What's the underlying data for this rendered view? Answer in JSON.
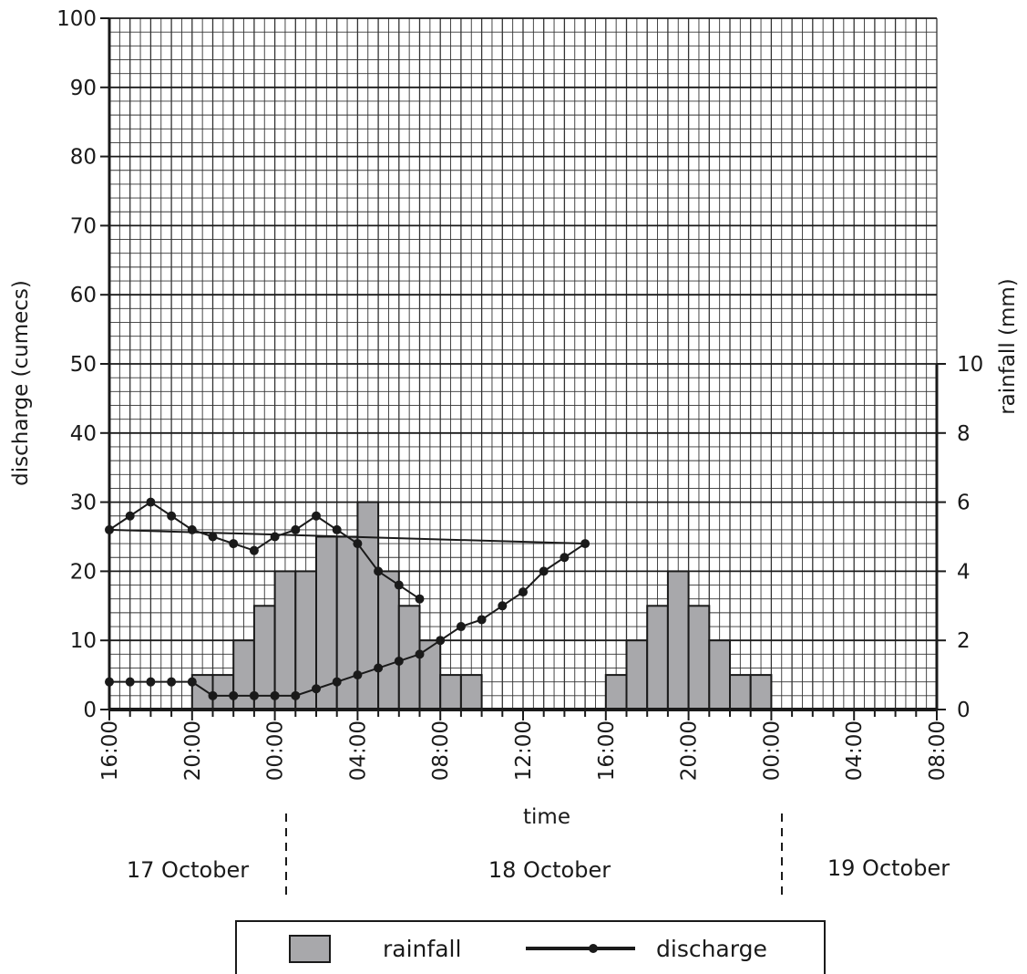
{
  "chart_data": {
    "type": "bar+line",
    "xlabel": "time",
    "ylabel_left": "discharge (cumecs)",
    "ylabel_right": "rainfall (mm)",
    "ylim_left": [
      0,
      100
    ],
    "ylim_right": [
      0,
      10
    ],
    "yticks_left": [
      "0",
      "10",
      "20",
      "30",
      "40",
      "50",
      "60",
      "70",
      "80",
      "90",
      "100"
    ],
    "yticks_right": [
      "0",
      "2",
      "4",
      "6",
      "8",
      "10"
    ],
    "xticks": [
      "16:00",
      "20:00",
      "00:00",
      "04:00",
      "08:00",
      "12:00",
      "16:00",
      "20:00",
      "00:00",
      "04:00",
      "08:00"
    ],
    "dates": [
      "17 October",
      "18 October",
      "19 October"
    ],
    "grid": true,
    "legend": {
      "position": "bottom-center",
      "rainfall_label": "rainfall",
      "discharge_label": "discharge"
    },
    "rainfall": {
      "name": "rainfall",
      "hours_since_16_00_17_Oct": [
        4,
        5,
        6,
        7,
        8,
        9,
        10,
        11,
        12,
        13,
        14,
        15,
        16,
        17,
        24,
        25,
        26,
        27,
        28,
        29,
        30,
        31
      ],
      "values_mm": [
        1,
        1,
        2,
        3,
        4,
        4,
        5,
        5,
        6,
        4,
        3,
        2,
        1,
        1,
        1,
        2,
        3,
        4,
        3,
        2,
        1,
        1
      ]
    },
    "discharge": {
      "name": "discharge",
      "time": [
        "16:00",
        "17:00",
        "18:00",
        "19:00",
        "20:00",
        "21:00",
        "22:00",
        "23:00",
        "00:00",
        "01:00",
        "02:00",
        "03:00",
        "04:00",
        "05:00",
        "06:00",
        "07:00",
        "08:00",
        "09:00",
        "10:00",
        "11:00",
        "12:00",
        "13:00",
        "14:00",
        "15:00",
        "16:00",
        "17:00",
        "18:00",
        "19:00",
        "20:00",
        "21:00",
        "22:00",
        "23:00",
        "00:00",
        "01:00",
        "02:00",
        "03:00",
        "04:00",
        "05:00",
        "06:00",
        "07:00"
      ],
      "values_cumecs": [
        4,
        4,
        4,
        4,
        4,
        2,
        2,
        2,
        2,
        2,
        3,
        4,
        5,
        6,
        7,
        8,
        10,
        12,
        13,
        15,
        17,
        20,
        22,
        24,
        26,
        28,
        30,
        28,
        26,
        25,
        24,
        23,
        25,
        26,
        28,
        26,
        24,
        20,
        18,
        16
      ]
    }
  }
}
